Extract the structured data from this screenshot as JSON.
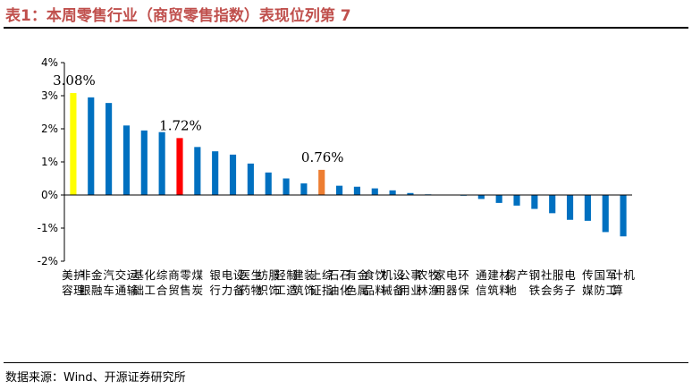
{
  "header": {
    "title": "表1：本周零售行业（商贸零售指数）表现位列第 7"
  },
  "footer": {
    "source": "数据来源：Wind、开源证券研究所"
  },
  "colors": {
    "default": "#0070c0",
    "highlight_top": "#ffff00",
    "highlight_retail": "#ff0000",
    "highlight_index": "#ed7d31"
  },
  "chart_data": {
    "type": "bar",
    "title": "",
    "xlabel": "",
    "ylabel": "",
    "ylim": [
      -2,
      4
    ],
    "yticks": [
      -2,
      -1,
      0,
      1,
      2,
      3,
      4
    ],
    "ytick_labels": [
      "-2%",
      "-1%",
      "0%",
      "1%",
      "2%",
      "3%",
      "4%"
    ],
    "grid": false,
    "categories": [
      "美容护理",
      "非银金融",
      "汽车",
      "交通运输",
      "基础化工",
      "综合",
      "商贸零售",
      "煤炭",
      "银行",
      "电力设备",
      "医药生物",
      "纺织服饰",
      "轻工制造",
      "建筑装饰",
      "上证综指",
      "石油石化",
      "有色金属",
      "食品饮料",
      "机械设备",
      "公用事业",
      "农林牧渔",
      "家用电器",
      "环保",
      "通信",
      "建筑材料",
      "房地产",
      "钢铁",
      "社会服务",
      "电子",
      "传媒",
      "国防军工",
      "计算机"
    ],
    "values": [
      3.08,
      2.95,
      2.78,
      2.1,
      1.95,
      1.9,
      1.72,
      1.45,
      1.32,
      1.22,
      0.95,
      0.68,
      0.5,
      0.35,
      0.76,
      0.28,
      0.25,
      0.2,
      0.14,
      0.06,
      0.02,
      0.0,
      -0.01,
      -0.12,
      -0.24,
      -0.32,
      -0.42,
      -0.55,
      -0.75,
      -0.78,
      -1.12,
      -1.25
    ],
    "bar_colors": [
      "#ffff00",
      "#0070c0",
      "#0070c0",
      "#0070c0",
      "#0070c0",
      "#0070c0",
      "#ff0000",
      "#0070c0",
      "#0070c0",
      "#0070c0",
      "#0070c0",
      "#0070c0",
      "#0070c0",
      "#0070c0",
      "#ed7d31",
      "#0070c0",
      "#0070c0",
      "#0070c0",
      "#0070c0",
      "#0070c0",
      "#0070c0",
      "#0070c0",
      "#0070c0",
      "#0070c0",
      "#0070c0",
      "#0070c0",
      "#0070c0",
      "#0070c0",
      "#0070c0",
      "#0070c0",
      "#0070c0",
      "#0070c0"
    ],
    "annotations": [
      {
        "category": "美容护理",
        "text": "3.08%"
      },
      {
        "category": "商贸零售",
        "text": "1.72%"
      },
      {
        "category": "上证综指",
        "text": "0.76%"
      }
    ]
  }
}
